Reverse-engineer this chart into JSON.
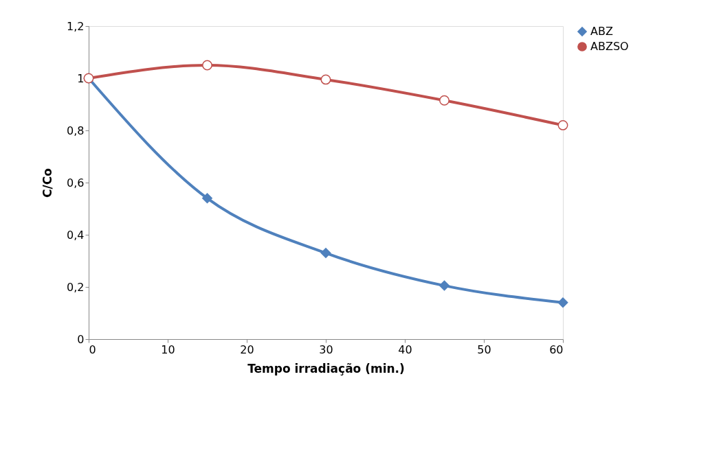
{
  "chart_data": {
    "type": "line",
    "xlabel": "Tempo irradiação (min.)",
    "ylabel": "C/Co",
    "x": [
      0,
      15,
      30,
      45,
      60
    ],
    "series": [
      {
        "name": "ABZ",
        "color": "#4f81bd",
        "marker": "diamond",
        "values": [
          1,
          0.54,
          0.33,
          0.205,
          0.14
        ]
      },
      {
        "name": "ABZSO",
        "color": "#c0504d",
        "marker": "circle",
        "values": [
          1,
          1.05,
          0.995,
          0.915,
          0.82
        ]
      }
    ],
    "xlim": [
      0,
      60
    ],
    "xticks": [
      0,
      10,
      20,
      30,
      40,
      50,
      60
    ],
    "ylim": [
      0,
      1.2
    ],
    "yticks": [
      0,
      {
        "value": 0.2,
        "label": "0,2"
      },
      {
        "value": 0.4,
        "label": "0,4"
      },
      {
        "value": 0.6,
        "label": "0,6"
      },
      {
        "value": 0.8,
        "label": "0,8"
      },
      1,
      {
        "value": 1.2,
        "label": "1,2"
      }
    ],
    "grid": false,
    "legend": "right",
    "line_style": "solid"
  }
}
